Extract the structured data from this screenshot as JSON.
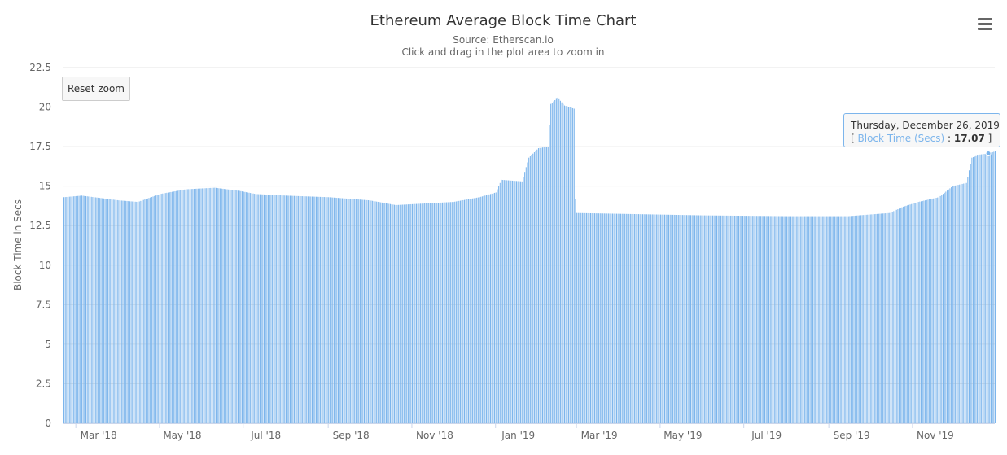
{
  "chart_data": {
    "type": "bar",
    "title": "Ethereum Average Block Time Chart",
    "subtitle": "Source: Etherscan.io",
    "subtitle_hint": "Click and drag in the plot area to zoom in",
    "ylabel": "Block Time in Secs",
    "xlabel": "",
    "ylim": [
      0,
      22.5
    ],
    "yticks": [
      "0",
      "2.5",
      "5",
      "7.5",
      "10",
      "12.5",
      "15",
      "17.5",
      "20",
      "22.5"
    ],
    "xticks": [
      "Mar '18",
      "May '18",
      "Jul '18",
      "Sep '18",
      "Nov '18",
      "Jan '19",
      "Mar '19",
      "May '19",
      "Jul '19",
      "Sep '19",
      "Nov '19"
    ],
    "x_range": [
      "2018-02-20",
      "2019-12-31"
    ],
    "series": [
      {
        "name": "Block Time (Secs)",
        "color": "#7cb5ec",
        "daily_values_from": "2018-02-20",
        "anchors": [
          [
            "2018-02-20",
            14.3
          ],
          [
            "2018-03-05",
            14.4
          ],
          [
            "2018-04-01",
            14.1
          ],
          [
            "2018-04-15",
            14.0
          ],
          [
            "2018-05-01",
            14.5
          ],
          [
            "2018-05-20",
            14.8
          ],
          [
            "2018-06-10",
            14.9
          ],
          [
            "2018-06-28",
            14.7
          ],
          [
            "2018-07-10",
            14.5
          ],
          [
            "2018-08-01",
            14.4
          ],
          [
            "2018-09-01",
            14.3
          ],
          [
            "2018-10-01",
            14.1
          ],
          [
            "2018-10-20",
            13.8
          ],
          [
            "2018-11-10",
            13.9
          ],
          [
            "2018-12-01",
            14.0
          ],
          [
            "2018-12-20",
            14.3
          ],
          [
            "2019-01-01",
            14.6
          ],
          [
            "2019-01-05",
            15.4
          ],
          [
            "2019-01-20",
            15.3
          ],
          [
            "2019-01-25",
            16.8
          ],
          [
            "2019-02-01",
            17.4
          ],
          [
            "2019-02-08",
            17.5
          ],
          [
            "2019-02-10",
            20.2
          ],
          [
            "2019-02-15",
            20.6
          ],
          [
            "2019-02-20",
            20.1
          ],
          [
            "2019-02-27",
            19.9
          ],
          [
            "2019-02-28",
            14.2
          ],
          [
            "2019-03-01",
            13.3
          ],
          [
            "2019-04-01",
            13.25
          ],
          [
            "2019-06-01",
            13.15
          ],
          [
            "2019-08-01",
            13.1
          ],
          [
            "2019-09-15",
            13.1
          ],
          [
            "2019-10-15",
            13.3
          ],
          [
            "2019-10-25",
            13.7
          ],
          [
            "2019-11-05",
            14.0
          ],
          [
            "2019-11-20",
            14.3
          ],
          [
            "2019-11-30",
            15.0
          ],
          [
            "2019-12-10",
            15.2
          ],
          [
            "2019-12-14",
            16.8
          ],
          [
            "2019-12-20",
            17.0
          ],
          [
            "2019-12-26",
            17.07
          ],
          [
            "2019-12-31",
            17.2
          ]
        ]
      }
    ],
    "highlight_point": {
      "x": "2019-12-26",
      "y": 17.07
    },
    "grid": true,
    "legend": "none"
  },
  "ui": {
    "reset_zoom_label": "Reset zoom",
    "menu_icon": "hamburger-menu-icon"
  },
  "tooltip": {
    "date": "Thursday, December 26, 2019",
    "open_bracket": "[ ",
    "series_label": "Block Time (Secs)",
    "separator": " : ",
    "value": "17.07",
    "close_bracket": " ]"
  }
}
